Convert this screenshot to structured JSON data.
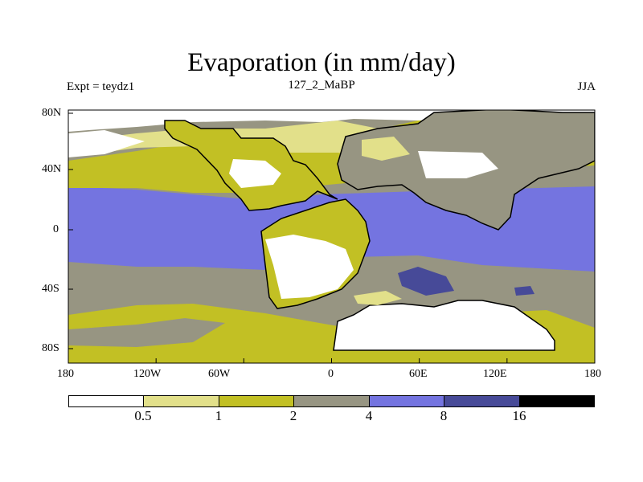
{
  "figure": {
    "title": "Evaporation (in mm/day)",
    "left_label": "Expt = teydz1",
    "center_label": "127_2_MaBP",
    "right_label": "JJA"
  },
  "axes": {
    "lat_ticks": [
      "80N",
      "40N",
      "0",
      "40S",
      "80S"
    ],
    "lon_ticks": [
      "180",
      "120W",
      "60W",
      "0",
      "60E",
      "120E",
      "180"
    ]
  },
  "colorbar": {
    "colors": [
      "#ffffff",
      "#e2e08a",
      "#c2c024",
      "#979582",
      "#7474e0",
      "#474a98",
      "#000000"
    ],
    "labels": [
      "0.5",
      "1",
      "2",
      "4",
      "8",
      "16"
    ]
  }
}
